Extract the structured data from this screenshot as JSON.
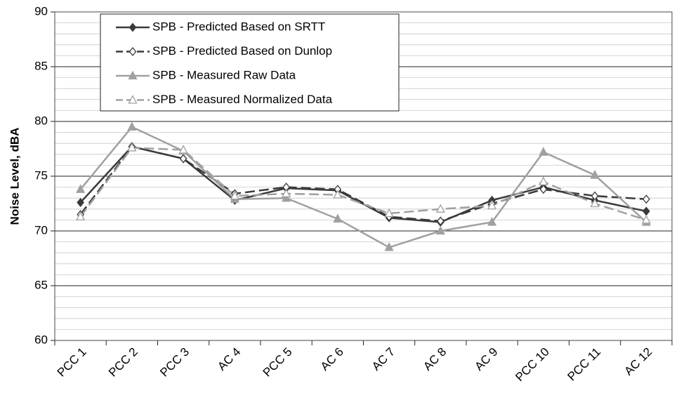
{
  "chart_data": {
    "type": "line",
    "y_label": "Noise Level, dBA",
    "categories": [
      "PCC 1",
      "PCC 2",
      "PCC 3",
      "AC 4",
      "PCC 5",
      "AC 6",
      "AC 7",
      "AC 8",
      "AC 9",
      "PCC 10",
      "PCC 11",
      "AC 12"
    ],
    "series": [
      {
        "name": "SPB - Predicted Based on SRTT",
        "color": "#3a3a3a",
        "dashed": false,
        "marker": "diamond",
        "filled": true,
        "values": [
          72.6,
          77.7,
          76.6,
          72.8,
          73.9,
          73.7,
          71.2,
          70.8,
          72.8,
          74.0,
          72.8,
          71.8
        ]
      },
      {
        "name": "SPB - Predicted Based on Dunlop",
        "color": "#3a3a3a",
        "dashed": true,
        "marker": "diamond",
        "filled": false,
        "values": [
          71.5,
          77.7,
          76.6,
          73.4,
          74.0,
          73.8,
          71.3,
          70.9,
          72.5,
          73.8,
          73.2,
          72.9
        ]
      },
      {
        "name": "SPB - Measured Raw Data",
        "color": "#a0a0a0",
        "dashed": false,
        "marker": "triangle",
        "filled": true,
        "values": [
          73.8,
          79.5,
          77.3,
          72.9,
          73.0,
          71.1,
          68.5,
          70.0,
          70.8,
          77.2,
          75.1,
          70.8
        ]
      },
      {
        "name": "SPB - Measured Normalized Data",
        "color": "#a0a0a0",
        "dashed": true,
        "marker": "triangle",
        "filled": false,
        "values": [
          71.3,
          77.6,
          77.4,
          73.2,
          73.4,
          73.3,
          71.6,
          72.0,
          72.3,
          74.5,
          72.5,
          71.0
        ]
      }
    ],
    "ylim": [
      60,
      90
    ],
    "yticks": [
      60,
      65,
      70,
      75,
      80,
      85,
      90
    ],
    "grid": true,
    "minor_grid_step": 1,
    "legend": "top-left"
  }
}
